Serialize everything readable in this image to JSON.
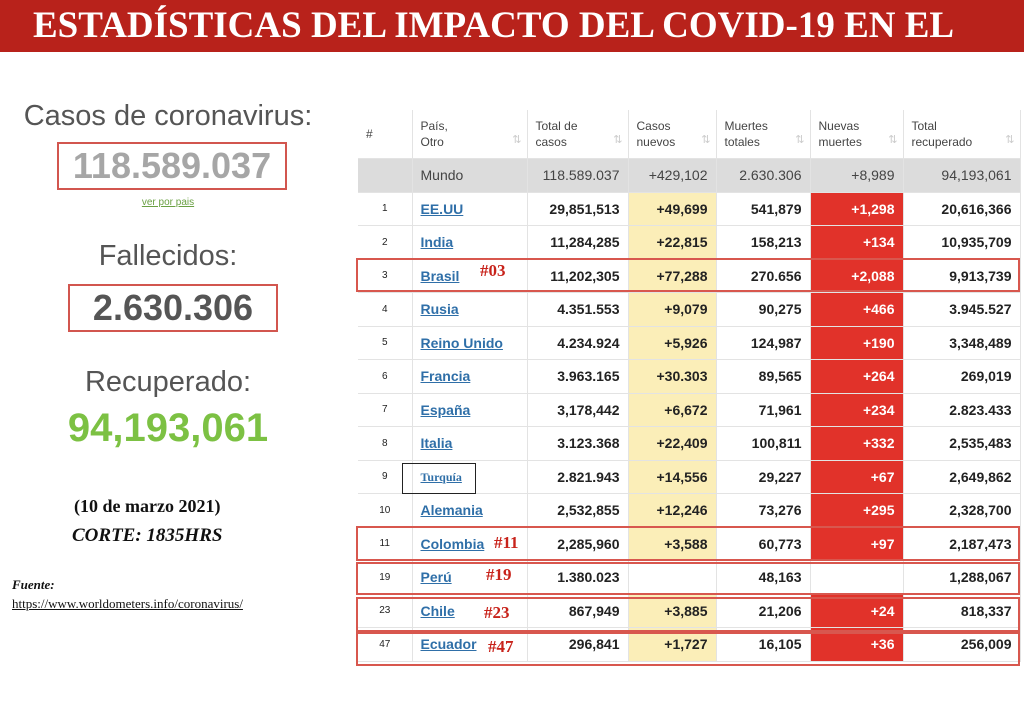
{
  "title": "ESTADÍSTICAS DEL IMPACTO DEL COVID-19 EN EL",
  "summary": {
    "cases_label": "Casos de coronavirus:",
    "cases_value": "118.589.037",
    "link": "ver por pais",
    "deaths_label": "Fallecidos:",
    "deaths_value": "2.630.306",
    "recovered_label": "Recuperado:",
    "recovered_value": "94,193,061"
  },
  "notes": {
    "date": "(10 de marzo 2021)",
    "cut": "CORTE: 1835HRS",
    "source_label": "Fuente:",
    "source_url": "https://www.worldometers.info/coronavirus/"
  },
  "table": {
    "headers": [
      "#",
      "País, Otro",
      "Total de casos",
      "Casos nuevos",
      "Muertes totales",
      "Nuevas muertes",
      "Total recuperado"
    ],
    "world": {
      "name": "Mundo",
      "total": "118.589.037",
      "new": "+429,102",
      "deaths": "2.630.306",
      "new_deaths": "+8,989",
      "recovered": "94,193,061"
    },
    "rows": [
      {
        "n": "1",
        "country": "EE.UU",
        "total": "29,851,513",
        "new": "+49,699",
        "deaths": "541,879",
        "new_deaths": "+1,298",
        "recovered": "20,616,366"
      },
      {
        "n": "2",
        "country": "India",
        "total": "11,284,285",
        "new": "+22,815",
        "deaths": "158,213",
        "new_deaths": "+134",
        "recovered": "10,935,709"
      },
      {
        "n": "3",
        "country": "Brasil",
        "total": "11,202,305",
        "new": "+77,288",
        "deaths": "270.656",
        "new_deaths": "+2,088",
        "recovered": "9,913,739",
        "tag": "#03"
      },
      {
        "n": "4",
        "country": "Rusia",
        "total": "4.351.553",
        "new": "+9,079",
        "deaths": "90,275",
        "new_deaths": "+466",
        "recovered": "3.945.527"
      },
      {
        "n": "5",
        "country": "Reino Unido",
        "total": "4.234.924",
        "new": "+5,926",
        "deaths": "124,987",
        "new_deaths": "+190",
        "recovered": "3,348,489"
      },
      {
        "n": "6",
        "country": "Francia",
        "total": "3.963.165",
        "new": "+30.303",
        "deaths": "89,565",
        "new_deaths": "+264",
        "recovered": "269,019"
      },
      {
        "n": "7",
        "country": "España",
        "total": "3,178,442",
        "new": "+6,672",
        "deaths": "71,961",
        "new_deaths": "+234",
        "recovered": "2.823.433"
      },
      {
        "n": "8",
        "country": "Italia",
        "total": "3.123.368",
        "new": "+22,409",
        "deaths": "100,811",
        "new_deaths": "+332",
        "recovered": "2,535,483"
      },
      {
        "n": "9",
        "country": "Turquía",
        "total": "2.821.943",
        "new": "+14,556",
        "deaths": "29,227",
        "new_deaths": "+67",
        "recovered": "2,649,862"
      },
      {
        "n": "10",
        "country": "Alemania",
        "total": "2,532,855",
        "new": "+12,246",
        "deaths": "73,276",
        "new_deaths": "+295",
        "recovered": "2,328,700"
      },
      {
        "n": "11",
        "country": "Colombia",
        "total": "2,285,960",
        "new": "+3,588",
        "deaths": "60,773",
        "new_deaths": "+97",
        "recovered": "2,187,473",
        "tag": "#11"
      },
      {
        "n": "19",
        "country": "Perú",
        "total": "1.380.023",
        "new": "",
        "deaths": "48,163",
        "new_deaths": "",
        "recovered": "1,288,067",
        "tag": "#19"
      },
      {
        "n": "23",
        "country": "Chile",
        "total": "867,949",
        "new": "+3,885",
        "deaths": "21,206",
        "new_deaths": "+24",
        "recovered": "818,337",
        "tag": "#23"
      },
      {
        "n": "47",
        "country": "Ecuador",
        "total": "296,841",
        "new": "+1,727",
        "deaths": "16,105",
        "new_deaths": "+36",
        "recovered": "256,009",
        "tag": "#47"
      }
    ]
  },
  "colors": {
    "title_bg": "#b8221b",
    "death_red": "#e1322a",
    "new_yellow": "#fbeeb8",
    "recovered_green": "#7cc143"
  }
}
